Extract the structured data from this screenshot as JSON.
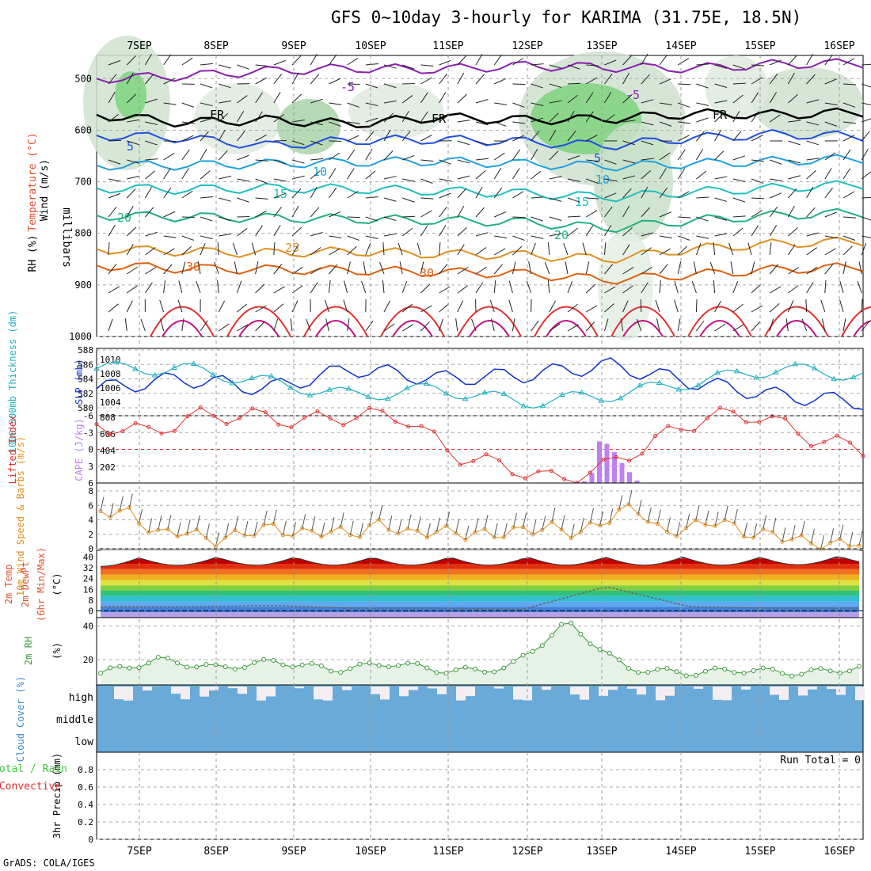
{
  "title": "GFS 0~10day 3-hourly for KARIMA (31.75E, 18.5N)",
  "credit": "GrADS: COLA/IGES",
  "run_total_text": "Run Total = 0",
  "colors": {
    "rh": "#3ccc3c",
    "temp_warm": "#e06010",
    "slp": "#1030d0",
    "thick": "#20b0c0",
    "li": "#e03030",
    "cape": "#c080f0",
    "wind": "#e09020",
    "cloud": "#6aaad8"
  },
  "chart_data": [
    {
      "type": "line",
      "panel": "upper-air",
      "x": [
        "7SEP",
        "8SEP",
        "9SEP",
        "10SEP",
        "11SEP",
        "12SEP",
        "13SEP",
        "14SEP",
        "15SEP",
        "16SEP"
      ],
      "y_tick_labels": [
        "500",
        "600",
        "700",
        "800",
        "900",
        "1000"
      ],
      "ylabel": "millibars",
      "side_labels": [
        "Wind (m/s)",
        "Temperature (°C)",
        "RH (%)"
      ],
      "series": [
        {
          "name": "-5",
          "values": [
            500,
            495,
            485,
            480,
            482,
            475,
            478,
            480,
            472,
            470
          ]
        },
        {
          "name": "FR",
          "values": [
            570,
            585,
            580,
            588,
            575,
            580,
            578,
            568,
            570,
            565
          ]
        },
        {
          "name": "5",
          "values": [
            610,
            615,
            630,
            620,
            618,
            622,
            630,
            615,
            608,
            612
          ]
        },
        {
          "name": "10",
          "values": [
            668,
            668,
            665,
            662,
            660,
            665,
            670,
            665,
            660,
            655
          ]
        },
        {
          "name": "15",
          "values": [
            712,
            715,
            712,
            714,
            718,
            722,
            730,
            720,
            712,
            705
          ]
        },
        {
          "name": "20",
          "values": [
            765,
            768,
            770,
            772,
            775,
            778,
            790,
            775,
            765,
            760
          ]
        },
        {
          "name": "25",
          "values": [
            830,
            835,
            838,
            835,
            840,
            842,
            850,
            830,
            820,
            815
          ]
        },
        {
          "name": "30",
          "values": [
            862,
            868,
            870,
            872,
            875,
            878,
            890,
            880,
            870,
            865
          ]
        }
      ],
      "contour_labels": [
        "-5",
        "-5",
        "-5",
        "FR",
        "FR",
        "FR",
        "FR",
        "5",
        "5",
        "10",
        "10",
        "15",
        "15",
        "20",
        "20",
        "25",
        "30",
        "30",
        "30",
        "30",
        "30",
        "10"
      ]
    },
    {
      "type": "line",
      "panel": "thickness-slp",
      "left_ylabel": "1000-500mb Thickness (dm)",
      "right_ylabel": "SLP (mb)",
      "left_ticks": [
        "588",
        "586",
        "584",
        "582",
        "580"
      ],
      "right_ticks": [
        "1010",
        "1008",
        "1006",
        "1004"
      ],
      "x": [
        "7SEP",
        "8SEP",
        "9SEP",
        "10SEP",
        "11SEP",
        "12SEP",
        "13SEP",
        "14SEP",
        "15SEP",
        "16SEP"
      ],
      "series": [
        {
          "name": "SLP",
          "values": [
            1006,
            1007.5,
            1006,
            1009,
            1007.5,
            1008,
            1009.5,
            1007,
            1005,
            1004
          ]
        },
        {
          "name": "Thickness",
          "values": [
            586,
            586,
            584,
            582,
            583,
            581,
            582,
            584,
            586,
            585
          ]
        }
      ]
    },
    {
      "type": "bar",
      "panel": "li-cape",
      "left_ylabel": "Lifted Index",
      "right_ylabel": "CAPE (J/kg)",
      "left_ticks": [
        "-6",
        "-3",
        "0",
        "3",
        "6"
      ],
      "right_ticks": [
        "808",
        "606",
        "404",
        "202"
      ],
      "cape_values": [
        20,
        120,
        500,
        470,
        370,
        240,
        130,
        30
      ],
      "li_values": [
        4.5,
        3,
        6,
        6,
        5,
        6,
        6,
        -1,
        -3,
        -5.5,
        -3,
        2,
        6,
        6,
        2,
        0
      ]
    },
    {
      "type": "line",
      "panel": "wind10m",
      "ylabel": "10m Wind Speed & Barbs (m/s)",
      "y_ticks": [
        "8",
        "6",
        "4",
        "2",
        "0"
      ],
      "values": [
        2.8,
        3,
        6,
        5.5,
        7,
        6,
        5,
        6,
        5.5,
        6,
        4.5,
        6,
        5.5,
        6,
        6,
        5.5,
        5,
        6,
        4,
        2,
        6,
        5,
        4,
        6,
        6,
        7,
        7.5,
        7
      ]
    },
    {
      "type": "area",
      "panel": "temp2m",
      "ylabel": "2m Temp 2m DewPt (6hr Min/Max) (°C)",
      "y_ticks": [
        "40",
        "32",
        "24",
        "16",
        "8",
        "0"
      ],
      "temp_max": [
        39,
        40,
        40,
        40,
        40,
        40,
        40,
        40,
        40,
        41
      ],
      "temp_min": [
        34,
        34,
        33,
        34,
        34,
        34,
        34,
        34,
        34,
        34
      ],
      "dewpt": [
        3,
        3,
        4,
        2,
        2,
        1,
        18,
        3,
        2,
        2
      ]
    },
    {
      "type": "area",
      "panel": "rh2m",
      "ylabel": "2m RH (%)",
      "y_ticks": [
        "40",
        "20"
      ],
      "values": [
        12,
        20,
        15,
        19,
        14,
        18,
        13,
        15,
        42,
        15,
        12,
        14,
        12,
        15
      ]
    },
    {
      "type": "bar",
      "panel": "cloud",
      "ylabel": "Cloud Cover (%)",
      "levels": [
        "high",
        "middle",
        "low"
      ]
    },
    {
      "type": "bar",
      "panel": "precip",
      "ylabel": "3hr Precip (mm)",
      "side_labels": [
        "Total / Rain",
        "Convective"
      ],
      "y_ticks": [
        "0.8",
        "0.6",
        "0.4",
        "0.2",
        "0"
      ],
      "values": []
    }
  ]
}
